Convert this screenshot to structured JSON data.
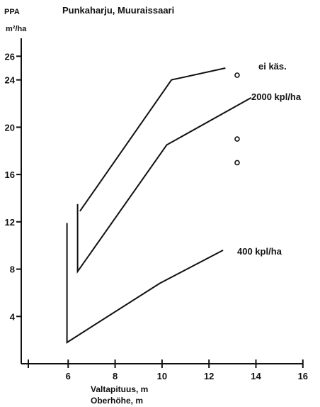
{
  "chart_data": {
    "type": "line",
    "title": "Punkaharju, Muuraissaari",
    "ylabel": "PPA",
    "yunit": "m²/ha",
    "xlabel": [
      "Valtapituus, m",
      "Oberhöhe, m"
    ],
    "xlim": [
      4,
      16
    ],
    "ylim": [
      0,
      26
    ],
    "x_ticks": [
      6,
      8,
      10,
      12,
      14,
      16
    ],
    "y_ticks": [
      4,
      8,
      12,
      16,
      20,
      24,
      26
    ],
    "grid": false,
    "series": [
      {
        "name": "ei käs.",
        "points": [
          [
            6.5,
            12.9
          ],
          [
            10.4,
            24.0
          ],
          [
            12.7,
            25.0
          ]
        ]
      },
      {
        "name": "2000 kpl/ha",
        "points": [
          [
            6.4,
            13.5
          ],
          [
            6.4,
            7.8
          ],
          [
            10.2,
            18.5
          ],
          [
            13.8,
            22.5
          ]
        ]
      },
      {
        "name": "400 kpl/ha",
        "points": [
          [
            5.95,
            11.9
          ],
          [
            5.95,
            1.8
          ],
          [
            9.9,
            6.8
          ],
          [
            12.6,
            9.6
          ]
        ]
      }
    ],
    "observations": [
      [
        13.2,
        24.4
      ],
      [
        13.2,
        19.0
      ],
      [
        13.2,
        17.0
      ]
    ]
  }
}
